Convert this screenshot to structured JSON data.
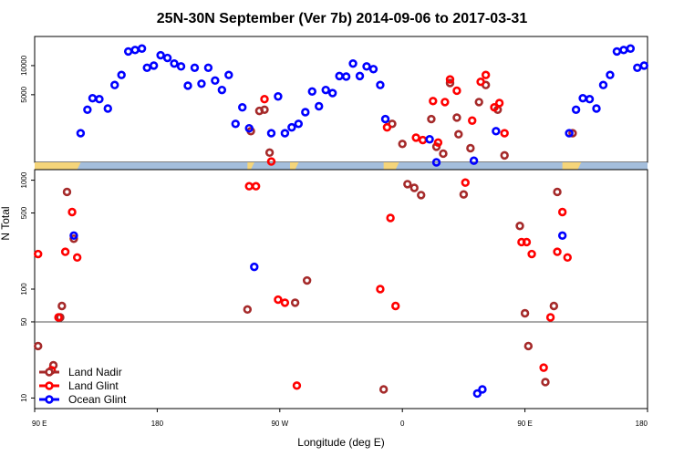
{
  "chart_data": {
    "type": "scatter",
    "title": "25N-30N September (Ver 7b)   2014-09-06 to 2017-03-31",
    "xlabel": "Longitude (deg E)",
    "ylabel": "N Total",
    "xlim": [
      0,
      360
    ],
    "x_ticks": [
      {
        "value": 0,
        "label": "90 E"
      },
      {
        "value": 72,
        "label": "180"
      },
      {
        "value": 144,
        "label": "90 W"
      },
      {
        "value": 216,
        "label": "0"
      },
      {
        "value": 288,
        "label": "90 E"
      },
      {
        "value": 360,
        "label": "180"
      }
    ],
    "upper_panel": {
      "ylim": [
        1000,
        20000
      ],
      "scale": "log",
      "y_ticks": [
        {
          "value": 5000,
          "label": "5000"
        },
        {
          "value": 10000,
          "label": "10000"
        }
      ]
    },
    "lower_panel": {
      "ylim": [
        8,
        1250
      ],
      "scale": "log",
      "y_ticks": [
        {
          "value": 10,
          "label": "10"
        },
        {
          "value": 50,
          "label": "50"
        },
        {
          "value": 100,
          "label": "100"
        },
        {
          "value": 500,
          "label": "500"
        },
        {
          "value": 1000,
          "label": "1000"
        }
      ],
      "reference_line": 50
    },
    "land_ocean_band": {
      "land_color": "#f5d57a",
      "ocean_color": "#a4bedc",
      "land_segments": [
        [
          0,
          26
        ],
        [
          125,
          128
        ],
        [
          150,
          154
        ],
        [
          205,
          213
        ],
        [
          310,
          320
        ]
      ]
    },
    "legend": {
      "position": "bottom-left",
      "entries": [
        {
          "label": "Land Nadir",
          "color": "#a52a2a"
        },
        {
          "label": "Land Glint",
          "color": "#ff0000"
        },
        {
          "label": "Ocean Glint",
          "color": "#0000ff"
        }
      ]
    },
    "series": [
      {
        "name": "Land Nadir",
        "color": "#a52a2a",
        "points": [
          [
            2,
            30
          ],
          [
            11,
            20
          ],
          [
            15,
            55
          ],
          [
            16,
            70
          ],
          [
            19,
            780
          ],
          [
            23,
            290
          ],
          [
            125,
            65
          ],
          [
            127,
            2100
          ],
          [
            132,
            3400
          ],
          [
            135,
            3500
          ],
          [
            138,
            1260
          ],
          [
            153,
            75
          ],
          [
            160,
            120
          ],
          [
            205,
            12
          ],
          [
            210,
            2500
          ],
          [
            216,
            1550
          ],
          [
            219,
            920
          ],
          [
            223,
            850
          ],
          [
            227,
            730
          ],
          [
            233,
            2800
          ],
          [
            236,
            1450
          ],
          [
            240,
            1230
          ],
          [
            244,
            6600
          ],
          [
            248,
            2900
          ],
          [
            249,
            1950
          ],
          [
            252,
            740
          ],
          [
            256,
            1400
          ],
          [
            261,
            4200
          ],
          [
            265,
            6300
          ],
          [
            272,
            3500
          ],
          [
            276,
            1180
          ],
          [
            285,
            380
          ],
          [
            288,
            60
          ],
          [
            290,
            30
          ],
          [
            300,
            14
          ],
          [
            305,
            70
          ],
          [
            307,
            780
          ],
          [
            316,
            2000
          ]
        ]
      },
      {
        "name": "Land Glint",
        "color": "#ff0000",
        "points": [
          [
            2,
            210
          ],
          [
            10,
            18
          ],
          [
            14,
            55
          ],
          [
            18,
            220
          ],
          [
            22,
            510
          ],
          [
            25,
            195
          ],
          [
            126,
            880
          ],
          [
            130,
            880
          ],
          [
            135,
            4500
          ],
          [
            139,
            1020
          ],
          [
            143,
            80
          ],
          [
            147,
            75
          ],
          [
            154,
            13
          ],
          [
            203,
            100
          ],
          [
            207,
            2300
          ],
          [
            209,
            450
          ],
          [
            212,
            70
          ],
          [
            224,
            1800
          ],
          [
            228,
            1700
          ],
          [
            234,
            4300
          ],
          [
            237,
            1600
          ],
          [
            241,
            4200
          ],
          [
            244,
            7200
          ],
          [
            248,
            5500
          ],
          [
            253,
            950
          ],
          [
            257,
            2700
          ],
          [
            262,
            6800
          ],
          [
            265,
            8000
          ],
          [
            270,
            3700
          ],
          [
            273,
            4100
          ],
          [
            276,
            2000
          ],
          [
            286,
            270
          ],
          [
            289,
            270
          ],
          [
            292,
            210
          ],
          [
            299,
            19
          ],
          [
            303,
            55
          ],
          [
            307,
            220
          ],
          [
            310,
            510
          ],
          [
            313,
            195
          ]
        ]
      },
      {
        "name": "Ocean Glint",
        "color": "#0000ff",
        "points": [
          [
            23,
            310
          ],
          [
            27,
            2000
          ],
          [
            31,
            3500
          ],
          [
            34,
            4600
          ],
          [
            38,
            4500
          ],
          [
            43,
            3600
          ],
          [
            47,
            6300
          ],
          [
            51,
            8000
          ],
          [
            55,
            14000
          ],
          [
            59,
            14500
          ],
          [
            63,
            15000
          ],
          [
            66,
            9500
          ],
          [
            70,
            10000
          ],
          [
            74,
            12800
          ],
          [
            78,
            12000
          ],
          [
            82,
            10500
          ],
          [
            86,
            9800
          ],
          [
            90,
            6200
          ],
          [
            94,
            9500
          ],
          [
            98,
            6500
          ],
          [
            102,
            9500
          ],
          [
            106,
            7000
          ],
          [
            110,
            5600
          ],
          [
            114,
            8000
          ],
          [
            118,
            2500
          ],
          [
            122,
            3700
          ],
          [
            126,
            2250
          ],
          [
            129,
            160
          ],
          [
            139,
            2000
          ],
          [
            143,
            4800
          ],
          [
            147,
            2000
          ],
          [
            151,
            2300
          ],
          [
            155,
            2500
          ],
          [
            159,
            3300
          ],
          [
            163,
            5400
          ],
          [
            167,
            3800
          ],
          [
            171,
            5600
          ],
          [
            175,
            5200
          ],
          [
            179,
            7800
          ],
          [
            183,
            7700
          ],
          [
            187,
            10500
          ],
          [
            191,
            7800
          ],
          [
            195,
            9800
          ],
          [
            199,
            9200
          ],
          [
            203,
            6300
          ],
          [
            206,
            2800
          ],
          [
            260,
            11
          ],
          [
            263,
            12
          ],
          [
            232,
            1730
          ],
          [
            236,
            1000
          ],
          [
            258,
            1040
          ],
          [
            271,
            2100
          ],
          [
            310,
            310
          ],
          [
            314,
            2000
          ],
          [
            318,
            3500
          ],
          [
            322,
            4600
          ],
          [
            326,
            4500
          ],
          [
            330,
            3600
          ],
          [
            334,
            6300
          ],
          [
            338,
            8000
          ],
          [
            342,
            14000
          ],
          [
            346,
            14500
          ],
          [
            350,
            15000
          ],
          [
            354,
            9500
          ],
          [
            358,
            10000
          ]
        ]
      }
    ]
  }
}
